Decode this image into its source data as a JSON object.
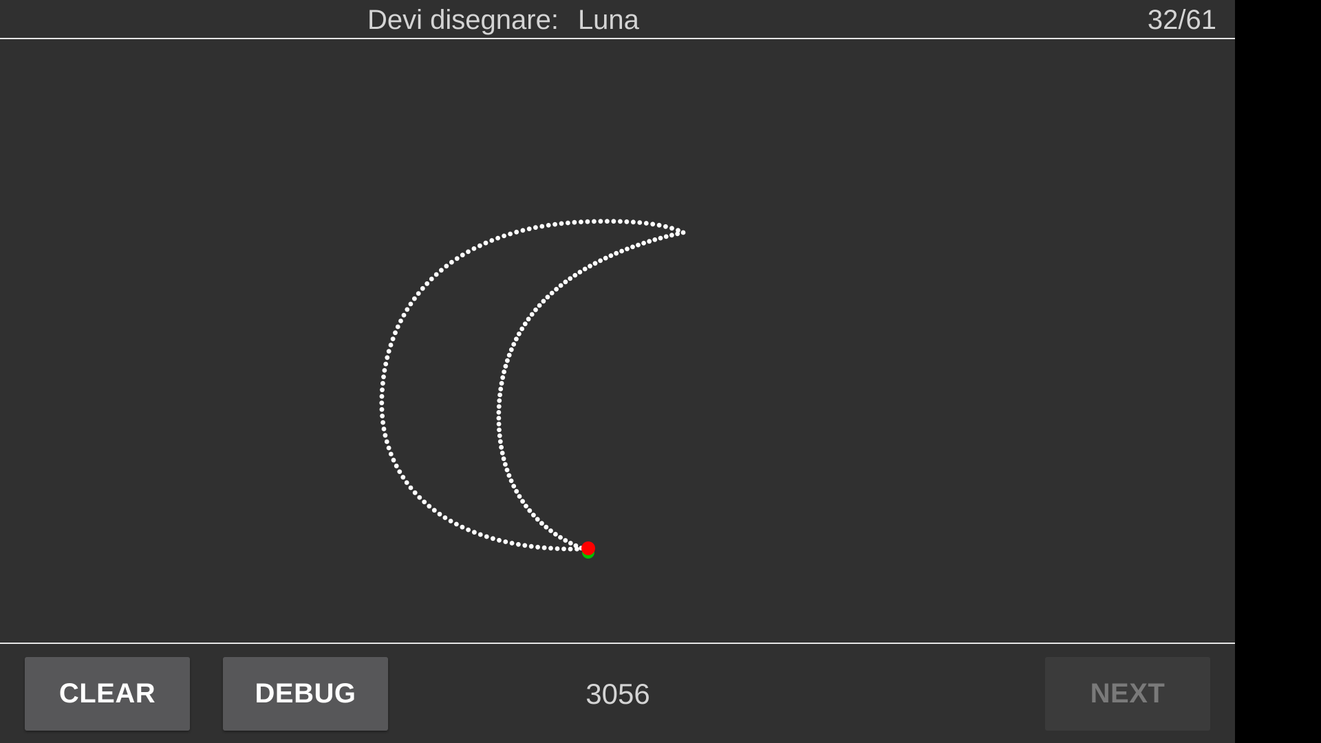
{
  "header": {
    "prompt_label": "Devi disegnare:",
    "prompt_word": "Luna",
    "progress": "32/61"
  },
  "footer": {
    "clear_label": "CLEAR",
    "debug_label": "DEBUG",
    "score": "3056",
    "next_label": "NEXT"
  },
  "drawing": {
    "stroke_color": "#ffffff",
    "end_point_color": "#ff0000",
    "start_point_color": "#00c000"
  }
}
